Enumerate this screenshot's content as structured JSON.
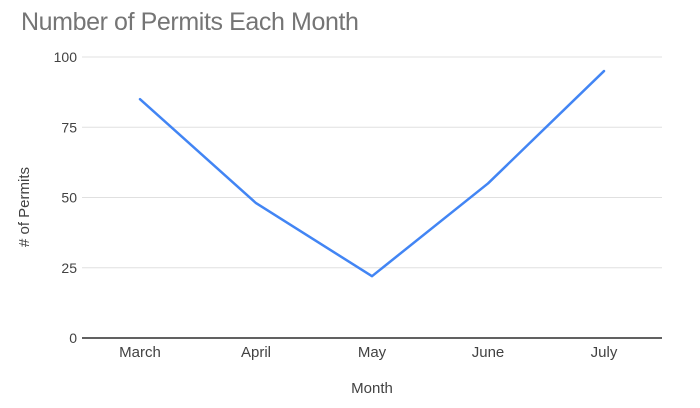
{
  "page": {
    "background": "#ffffff"
  },
  "chart_data": {
    "type": "line",
    "title": "Number of Permits Each Month",
    "xlabel": "Month",
    "ylabel": "# of Permits",
    "categories": [
      "March",
      "April",
      "May",
      "June",
      "July"
    ],
    "values": [
      85,
      48,
      22,
      55,
      95
    ],
    "ylim": [
      0,
      100
    ],
    "yticks": [
      0,
      25,
      50,
      75,
      100
    ],
    "grid": true,
    "legend": "none",
    "markers": "none",
    "colors": {
      "line": "#4285f4",
      "gridline": "#e0e0e0",
      "axis_line": "#616161",
      "axis_text": "#424242",
      "title_text": "#757575"
    }
  }
}
